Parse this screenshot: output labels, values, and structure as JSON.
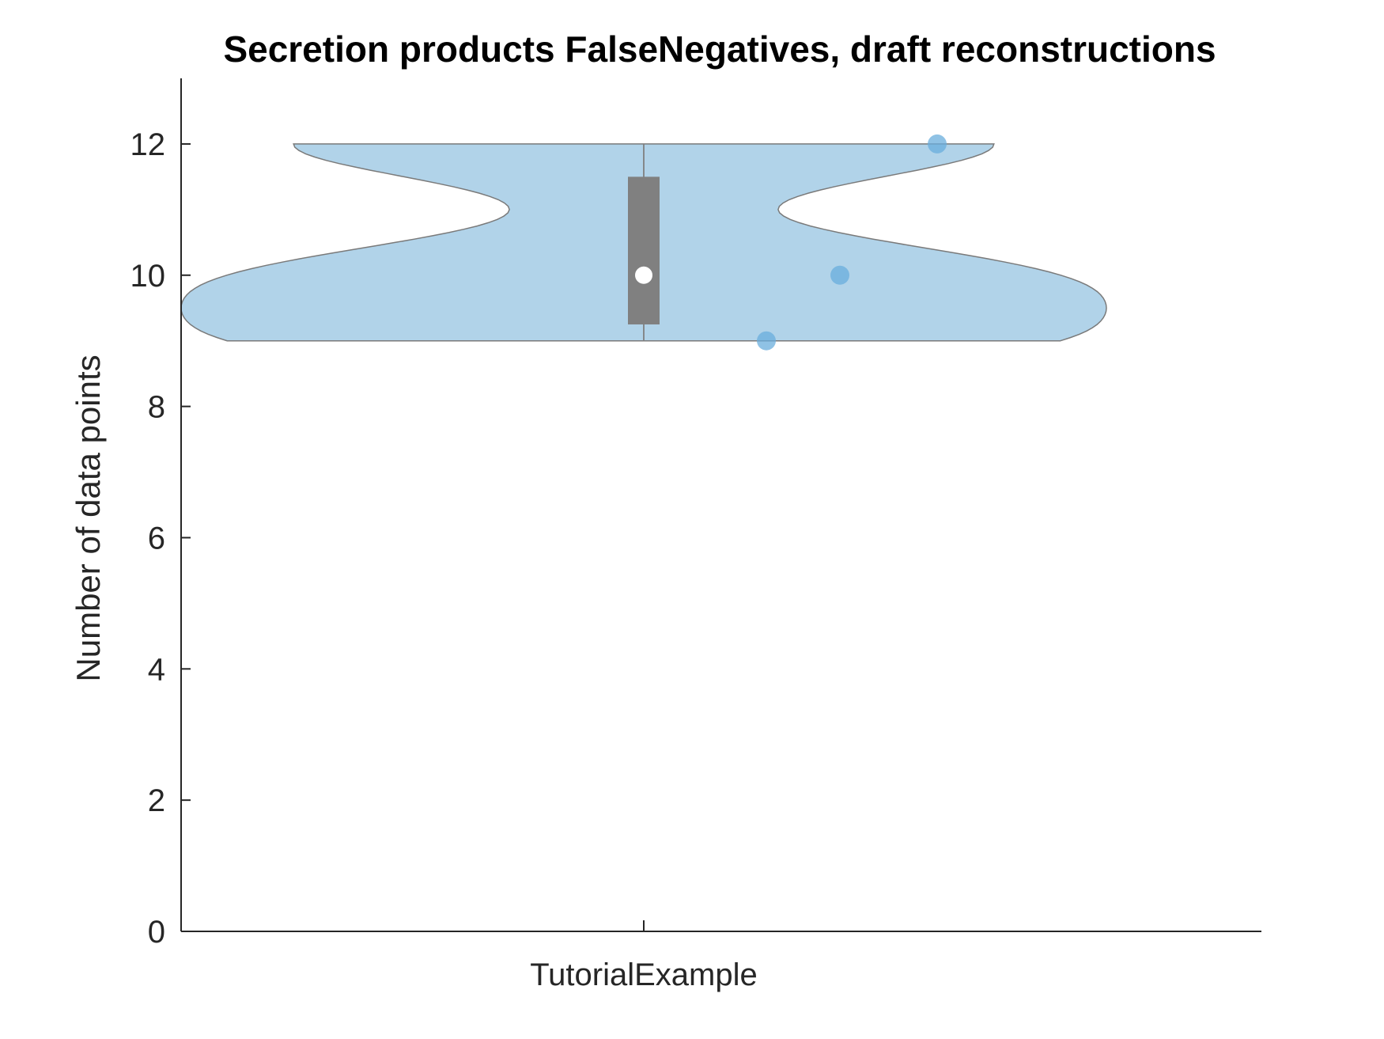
{
  "chart_data": {
    "type": "violin",
    "title": "Secretion products FalseNegatives, draft reconstructions",
    "xlabel": "",
    "ylabel": "Number of data points",
    "categories": [
      "TutorialExample"
    ],
    "ylim": [
      0,
      13
    ],
    "yticks": [
      0,
      2,
      4,
      6,
      8,
      10,
      12
    ],
    "yticklabels": [
      "0",
      "2",
      "4",
      "6",
      "8",
      "10",
      "12"
    ],
    "grid": false,
    "series": [
      {
        "category": "TutorialExample",
        "points": [
          9,
          10,
          12
        ],
        "median": 10,
        "q1": 9.25,
        "q3": 11.5,
        "min": 9,
        "max": 12,
        "violin_color": "#b1d3e9",
        "point_color": "#6aaedc",
        "box_color": "#808080",
        "median_color": "#ffffff"
      }
    ]
  }
}
